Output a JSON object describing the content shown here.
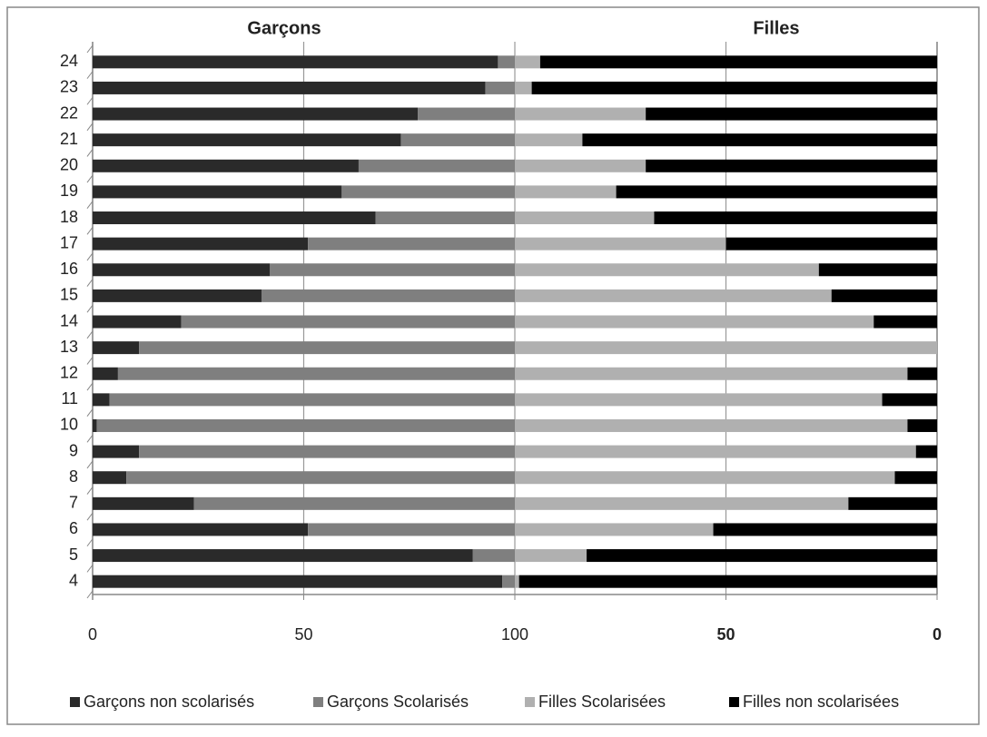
{
  "chart_data": {
    "type": "stacked-bar-horizontal",
    "side_titles": [
      "Garçons",
      "Filles"
    ],
    "categories": [
      "4",
      "5",
      "6",
      "7",
      "8",
      "9",
      "10",
      "11",
      "12",
      "13",
      "14",
      "15",
      "16",
      "17",
      "18",
      "19",
      "20",
      "21",
      "22",
      "23",
      "24"
    ],
    "series": [
      {
        "name": "Garçons non scolarisés",
        "color": "#2a2a2a",
        "values": [
          97,
          90,
          51,
          24,
          8,
          11,
          1,
          4,
          6,
          11,
          21,
          40,
          42,
          51,
          67,
          59,
          63,
          73,
          77,
          93,
          96
        ]
      },
      {
        "name": "Garçons Scolarisés",
        "color": "#7f7f7f",
        "values": [
          3,
          10,
          49,
          76,
          92,
          89,
          99,
          96,
          94,
          89,
          79,
          60,
          58,
          49,
          33,
          41,
          37,
          27,
          23,
          7,
          4
        ]
      },
      {
        "name": "Filles Scolarisées",
        "color": "#b0b0b0",
        "values": [
          1,
          17,
          47,
          79,
          90,
          95,
          93,
          87,
          93,
          100,
          85,
          75,
          72,
          50,
          33,
          24,
          31,
          16,
          31,
          4,
          6
        ]
      },
      {
        "name": "Filles non scolarisées",
        "color": "#000000",
        "values": [
          99,
          83,
          53,
          21,
          10,
          5,
          7,
          13,
          7,
          0,
          15,
          25,
          28,
          50,
          67,
          76,
          69,
          84,
          69,
          96,
          94
        ]
      }
    ],
    "xlim": [
      0,
      200
    ],
    "xticks": [
      0,
      50,
      100,
      {
        "value": 150,
        "label": "50"
      },
      {
        "value": 200,
        "label": "0"
      }
    ],
    "grid": true
  }
}
